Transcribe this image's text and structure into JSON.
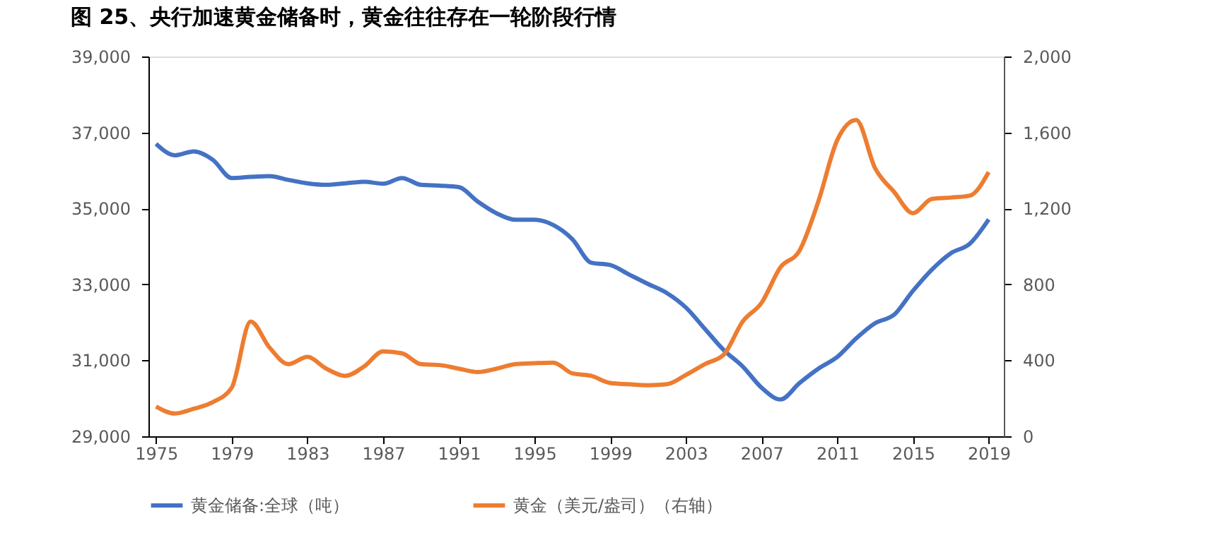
{
  "chart_data": {
    "type": "line",
    "title": "图 25、央行加速黄金储备时，黄金往往存在一轮阶段行情",
    "x": [
      1975,
      1976,
      1977,
      1978,
      1979,
      1980,
      1981,
      1982,
      1983,
      1984,
      1985,
      1986,
      1987,
      1988,
      1989,
      1990,
      1991,
      1992,
      1993,
      1994,
      1995,
      1996,
      1997,
      1998,
      1999,
      2000,
      2001,
      2002,
      2003,
      2004,
      2005,
      2006,
      2007,
      2008,
      2009,
      2010,
      2011,
      2012,
      2013,
      2014,
      2015,
      2016,
      2017,
      2018,
      2019
    ],
    "series": [
      {
        "name": "黄金储备:全球（吨）",
        "color": "#4472c4",
        "axis": "y",
        "values": [
          36700,
          36400,
          36500,
          36280,
          35800,
          35830,
          35850,
          35750,
          35660,
          35620,
          35660,
          35700,
          35650,
          35800,
          35620,
          35600,
          35560,
          35180,
          34870,
          34700,
          34700,
          34560,
          34190,
          33570,
          33510,
          33260,
          33010,
          32770,
          32390,
          31830,
          31270,
          30840,
          30280,
          29970,
          30400,
          30780,
          31090,
          31580,
          31980,
          32200,
          32830,
          33390,
          33820,
          34070,
          34710
        ]
      },
      {
        "name": "黄金（美元/盎司）（右轴）",
        "color": "#ed7d31",
        "axis": "y2",
        "values": [
          157,
          120,
          145,
          180,
          256,
          604,
          467,
          380,
          418,
          356,
          318,
          368,
          447,
          437,
          380,
          375,
          356,
          338,
          356,
          380,
          385,
          388,
          331,
          318,
          281,
          274,
          269,
          274,
          323,
          380,
          430,
          604,
          703,
          890,
          977,
          1237,
          1560,
          1665,
          1411,
          1287,
          1175,
          1250,
          1257,
          1267,
          1391
        ]
      }
    ],
    "xlim": [
      1974.6,
      2019.8
    ],
    "xticks": [
      1975,
      1979,
      1983,
      1987,
      1991,
      1995,
      1999,
      2003,
      2007,
      2011,
      2015,
      2019
    ],
    "ylim": [
      29000,
      39000
    ],
    "yticks": [
      {
        "value": 29000,
        "label": "29,000"
      },
      {
        "value": 31000,
        "label": "31,000"
      },
      {
        "value": 33000,
        "label": "33,000"
      },
      {
        "value": 35000,
        "label": "35,000"
      },
      {
        "value": 37000,
        "label": "37,000"
      },
      {
        "value": 39000,
        "label": "39,000"
      }
    ],
    "y2lim": [
      0,
      2000
    ],
    "y2ticks": [
      0,
      400,
      800,
      {
        "value": 1200,
        "label": "1,200"
      },
      {
        "value": 1600,
        "label": "1,600"
      },
      {
        "value": 2000,
        "label": "2,000"
      }
    ],
    "grid": false,
    "legend": "bottom"
  }
}
